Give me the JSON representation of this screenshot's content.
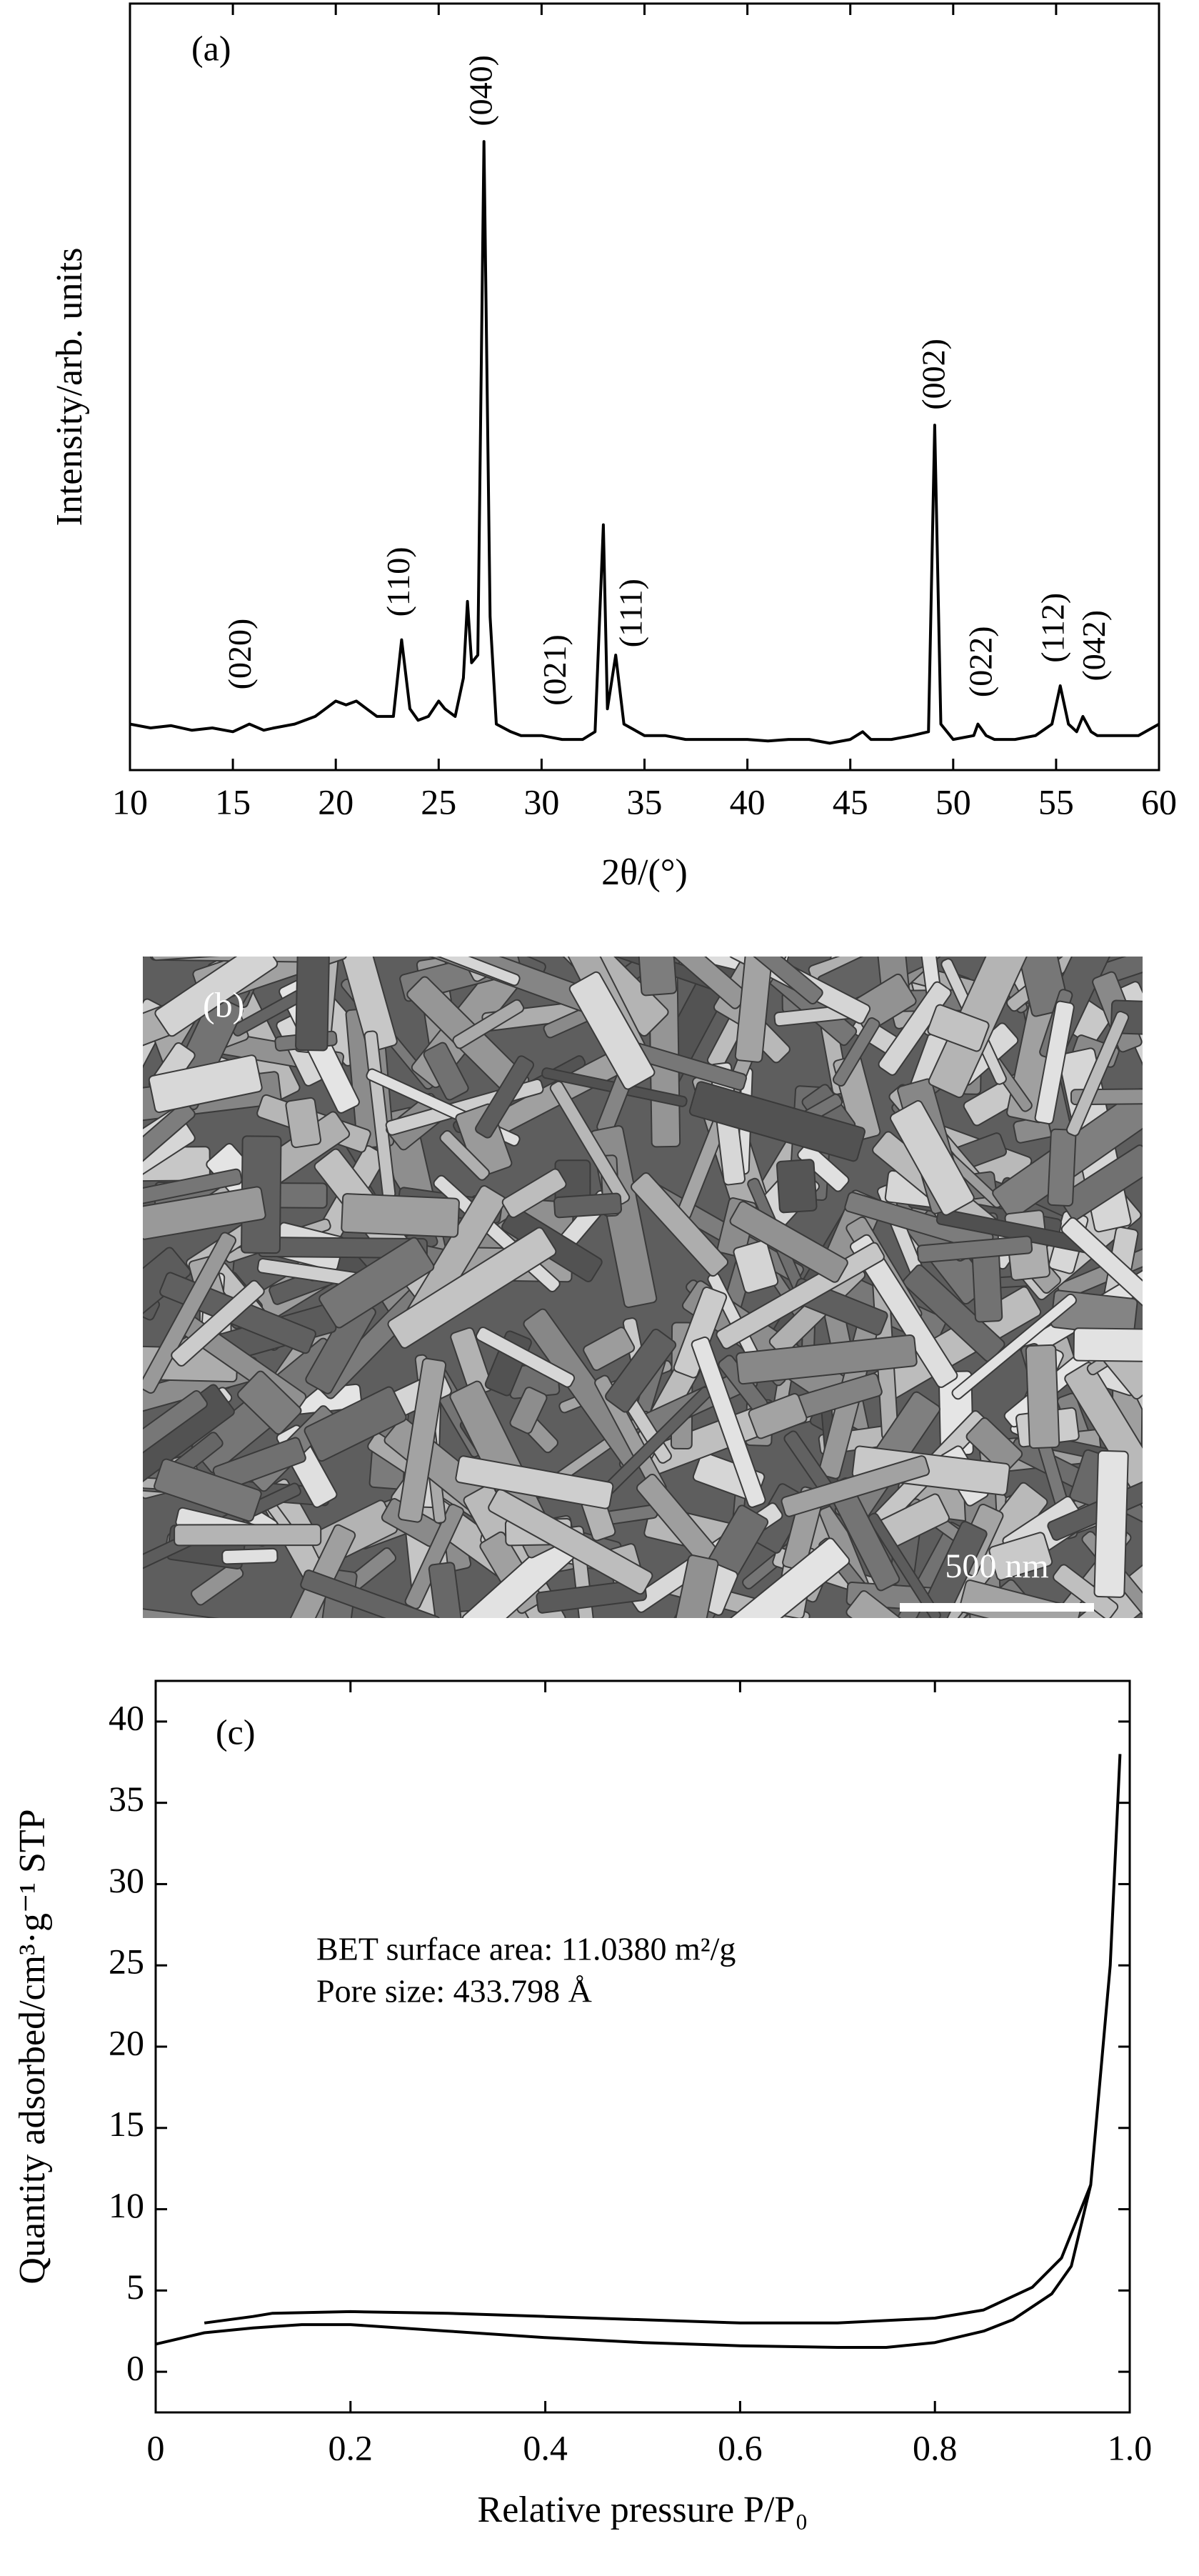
{
  "chart_data": [
    {
      "type": "line",
      "panel_label": "(a)",
      "x_label": "2θ/(°)",
      "y_label": "Intensity/arb. units",
      "x": [
        10,
        11,
        12,
        13,
        14,
        15,
        15.8,
        16.5,
        17,
        18,
        19,
        19.5,
        20,
        20.5,
        21,
        21.5,
        22,
        22.8,
        23.2,
        23.6,
        24,
        24.5,
        25,
        25.3,
        25.8,
        26.2,
        26.4,
        26.6,
        26.9,
        27.2,
        27.5,
        27.8,
        28.5,
        29,
        30,
        31,
        32,
        32.6,
        33,
        33.2,
        33.6,
        34,
        35,
        36,
        37,
        38,
        39,
        40,
        41,
        42,
        43,
        44,
        45,
        45.6,
        46,
        47,
        48,
        48.8,
        49.1,
        49.4,
        50,
        51,
        51.2,
        51.6,
        52,
        53,
        54,
        54.8,
        55.2,
        55.6,
        56,
        56.3,
        56.7,
        57,
        58,
        59,
        60
      ],
      "series": [
        {
          "color": "#000000",
          "values": [
            6,
            5.5,
            5.8,
            5.2,
            5.5,
            5,
            6,
            5.2,
            5.5,
            6,
            7,
            8,
            9,
            8.5,
            9,
            8,
            7,
            7,
            17,
            8,
            6.5,
            7,
            9,
            8,
            7,
            12,
            22,
            14,
            15,
            82,
            20,
            6,
            5,
            4.5,
            4.5,
            4,
            4,
            5,
            32,
            8,
            15,
            6,
            4.5,
            4.5,
            4,
            4,
            4,
            4,
            3.8,
            4,
            4,
            3.5,
            4,
            5,
            4,
            4,
            4.5,
            5,
            45,
            6,
            4,
            4.5,
            6,
            4.5,
            4,
            4,
            4.5,
            6,
            11,
            6,
            5,
            7,
            5,
            4.5,
            4.5,
            4.5,
            6
          ]
        }
      ],
      "xlim": [
        10,
        60
      ],
      "xticks": [
        10,
        15,
        20,
        25,
        30,
        35,
        40,
        45,
        50,
        55,
        60
      ],
      "ylim": [
        0,
        100
      ],
      "annotations": [
        {
          "text": "(020)",
          "x": 15.5,
          "y": 10.5
        },
        {
          "text": "(110)",
          "x": 23.2,
          "y": 20
        },
        {
          "text": "(040)",
          "x": 27.2,
          "y": 84
        },
        {
          "text": "(021)",
          "x": 30.8,
          "y": 8.4
        },
        {
          "text": "(111)",
          "x": 34.5,
          "y": 16
        },
        {
          "text": "(002)",
          "x": 49.2,
          "y": 47
        },
        {
          "text": "(022)",
          "x": 51.5,
          "y": 9.5
        },
        {
          "text": "(112)",
          "x": 55.0,
          "y": 14
        },
        {
          "text": "(042)",
          "x": 57.0,
          "y": 11.6
        }
      ]
    },
    {
      "type": "line",
      "panel_label": "(c)",
      "x_label": "Relative pressure P/P₀",
      "y_label": "Quantity adsorbed/cm³·g⁻¹ STP",
      "series": [
        {
          "color": "#000000",
          "x": [
            0,
            0.05,
            0.1,
            0.15,
            0.2,
            0.3,
            0.4,
            0.5,
            0.6,
            0.7,
            0.75,
            0.8,
            0.85,
            0.88,
            0.92,
            0.94,
            0.96,
            0.98,
            0.99
          ],
          "values": [
            1.7,
            2.4,
            2.7,
            2.9,
            2.9,
            2.5,
            2.1,
            1.8,
            1.6,
            1.5,
            1.5,
            1.8,
            2.5,
            3.2,
            4.8,
            6.5,
            11.5,
            25,
            38
          ]
        },
        {
          "color": "#000000",
          "x": [
            0.05,
            0.1,
            0.12,
            0.2,
            0.3,
            0.4,
            0.5,
            0.6,
            0.7,
            0.8,
            0.85,
            0.9,
            0.93,
            0.96
          ],
          "values": [
            3.0,
            3.4,
            3.6,
            3.7,
            3.6,
            3.4,
            3.2,
            3.0,
            3.0,
            3.3,
            3.8,
            5.2,
            7,
            11.5
          ]
        }
      ],
      "xlim": [
        0,
        1
      ],
      "xticks": [
        0,
        0.2,
        0.4,
        0.6,
        0.8,
        {
          "value": 1,
          "label": "1.0"
        }
      ],
      "ylim": [
        -2.5,
        42.5
      ],
      "yticks": [
        0,
        5,
        10,
        15,
        20,
        25,
        30,
        35,
        40
      ],
      "annotations": [
        {
          "text": "BET surface area: 11.0380 m²/g",
          "x": 0.165,
          "y": 25.8
        },
        {
          "text": "Pore size: 433.798 Å",
          "x": 0.165,
          "y": 23.2
        }
      ]
    }
  ],
  "image": {
    "panel_label": "(b)",
    "scale_bar": "500 nm"
  }
}
